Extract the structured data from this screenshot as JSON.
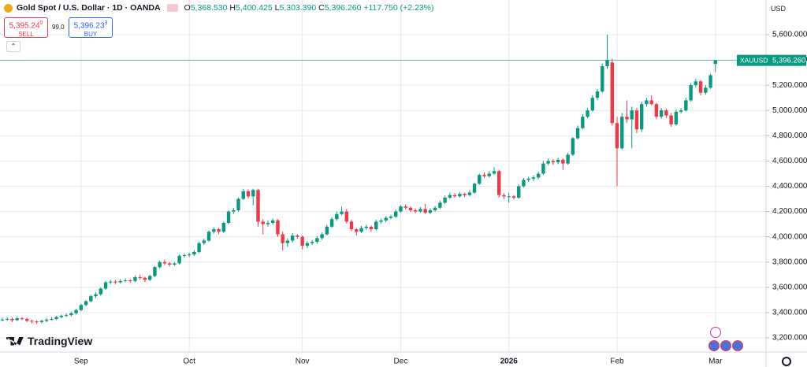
{
  "header": {
    "title": "Gold Spot / U.S. Dollar · 1D · OANDA",
    "o_key": "O",
    "o": "5,368.530",
    "h_key": "H",
    "h": "5,400.425",
    "l_key": "L",
    "l": "5,303.390",
    "c_key": "C",
    "c": "5,396.260",
    "change": "+117.750 (+2.23%)",
    "sell_price": "5,395.24",
    "sell_sup": "0",
    "sell": "SELL",
    "spread": "99.0",
    "buy_price": "5,396.23",
    "buy_sup": "3",
    "buy": "BUY",
    "currency": "USD",
    "brand": "TradingView"
  },
  "chart_data": {
    "type": "candlestick",
    "up_color": "#089981",
    "down_color": "#f23645",
    "grid": true,
    "categories": [
      null,
      null,
      null,
      null,
      null,
      null,
      null,
      null,
      null,
      null,
      null,
      null,
      null,
      null,
      null,
      null,
      "Sep",
      null,
      null,
      null,
      null,
      null,
      null,
      null,
      null,
      null,
      null,
      null,
      null,
      null,
      null,
      null,
      null,
      null,
      null,
      null,
      null,
      null,
      "Oct",
      null,
      null,
      null,
      null,
      null,
      null,
      null,
      null,
      null,
      null,
      null,
      null,
      null,
      null,
      null,
      null,
      null,
      null,
      null,
      null,
      null,
      null,
      "Nov",
      null,
      null,
      null,
      null,
      null,
      null,
      null,
      null,
      null,
      null,
      null,
      null,
      null,
      null,
      null,
      null,
      null,
      null,
      null,
      "Dec",
      null,
      null,
      null,
      null,
      null,
      null,
      null,
      null,
      null,
      null,
      null,
      null,
      null,
      null,
      null,
      null,
      null,
      null,
      null,
      null,
      null,
      "2026",
      null,
      null,
      null,
      null,
      null,
      null,
      null,
      null,
      null,
      null,
      null,
      null,
      null,
      null,
      null,
      null,
      null,
      null,
      null,
      null,
      null,
      "Feb",
      null,
      null,
      null,
      null,
      null,
      null,
      null,
      null,
      null,
      null,
      null,
      null,
      null,
      null,
      null,
      null,
      null,
      null,
      null,
      "Mar"
    ],
    "ohlc": [
      [
        3340,
        3360,
        3330,
        3345
      ],
      [
        3345,
        3365,
        3335,
        3350
      ],
      [
        3350,
        3360,
        3325,
        3340
      ],
      [
        3340,
        3370,
        3335,
        3355
      ],
      [
        3355,
        3365,
        3340,
        3350
      ],
      [
        3350,
        3360,
        3325,
        3335
      ],
      [
        3335,
        3345,
        3315,
        3330
      ],
      [
        3330,
        3340,
        3310,
        3325
      ],
      [
        3325,
        3345,
        3315,
        3335
      ],
      [
        3335,
        3355,
        3325,
        3345
      ],
      [
        3345,
        3365,
        3335,
        3350
      ],
      [
        3350,
        3375,
        3340,
        3365
      ],
      [
        3365,
        3385,
        3355,
        3375
      ],
      [
        3375,
        3395,
        3365,
        3380
      ],
      [
        3380,
        3405,
        3370,
        3395
      ],
      [
        3395,
        3430,
        3385,
        3420
      ],
      [
        3420,
        3470,
        3410,
        3460
      ],
      [
        3460,
        3500,
        3450,
        3490
      ],
      [
        3490,
        3540,
        3480,
        3530
      ],
      [
        3530,
        3560,
        3515,
        3545
      ],
      [
        3545,
        3600,
        3535,
        3590
      ],
      [
        3590,
        3650,
        3580,
        3640
      ],
      [
        3640,
        3660,
        3625,
        3645
      ],
      [
        3645,
        3660,
        3625,
        3640
      ],
      [
        3640,
        3665,
        3630,
        3650
      ],
      [
        3650,
        3670,
        3640,
        3655
      ],
      [
        3655,
        3665,
        3635,
        3650
      ],
      [
        3650,
        3695,
        3640,
        3680
      ],
      [
        3680,
        3700,
        3660,
        3675
      ],
      [
        3675,
        3685,
        3640,
        3660
      ],
      [
        3660,
        3700,
        3650,
        3690
      ],
      [
        3690,
        3770,
        3680,
        3760
      ],
      [
        3760,
        3810,
        3750,
        3800
      ],
      [
        3800,
        3820,
        3775,
        3790
      ],
      [
        3790,
        3800,
        3765,
        3780
      ],
      [
        3780,
        3800,
        3770,
        3790
      ],
      [
        3790,
        3860,
        3780,
        3850
      ],
      [
        3850,
        3870,
        3835,
        3855
      ],
      [
        3855,
        3875,
        3840,
        3860
      ],
      [
        3860,
        3895,
        3850,
        3880
      ],
      [
        3880,
        3960,
        3870,
        3950
      ],
      [
        3950,
        3985,
        3935,
        3970
      ],
      [
        3970,
        4050,
        3960,
        4040
      ],
      [
        4040,
        4075,
        4025,
        4060
      ],
      [
        4060,
        4070,
        4020,
        4040
      ],
      [
        4040,
        4120,
        4030,
        4110
      ],
      [
        4110,
        4210,
        4100,
        4200
      ],
      [
        4200,
        4230,
        4180,
        4210
      ],
      [
        4210,
        4310,
        4200,
        4300
      ],
      [
        4300,
        4380,
        4290,
        4360
      ],
      [
        4360,
        4375,
        4300,
        4320
      ],
      [
        4320,
        4380,
        4250,
        4370
      ],
      [
        4370,
        4380,
        4080,
        4120
      ],
      [
        4120,
        4140,
        4020,
        4100
      ],
      [
        4100,
        4130,
        4080,
        4110
      ],
      [
        4110,
        4145,
        4095,
        4130
      ],
      [
        4130,
        4140,
        4000,
        4020
      ],
      [
        4020,
        4040,
        3890,
        3950
      ],
      [
        3950,
        3990,
        3920,
        3970
      ],
      [
        3970,
        4030,
        3955,
        4010
      ],
      [
        4010,
        4020,
        3985,
        4000
      ],
      [
        4000,
        4010,
        3900,
        3930
      ],
      [
        3930,
        3965,
        3910,
        3950
      ],
      [
        3950,
        3975,
        3935,
        3960
      ],
      [
        3960,
        4005,
        3945,
        3990
      ],
      [
        3990,
        4035,
        3975,
        4020
      ],
      [
        4020,
        4095,
        4010,
        4080
      ],
      [
        4080,
        4155,
        4070,
        4140
      ],
      [
        4140,
        4200,
        4125,
        4180
      ],
      [
        4180,
        4240,
        4170,
        4200
      ],
      [
        4200,
        4220,
        4105,
        4120
      ],
      [
        4120,
        4135,
        4045,
        4060
      ],
      [
        4060,
        4070,
        4010,
        4040
      ],
      [
        4040,
        4085,
        4030,
        4070
      ],
      [
        4070,
        4095,
        4055,
        4080
      ],
      [
        4080,
        4090,
        4040,
        4060
      ],
      [
        4060,
        4135,
        4050,
        4120
      ],
      [
        4120,
        4145,
        4105,
        4130
      ],
      [
        4130,
        4165,
        4115,
        4150
      ],
      [
        4150,
        4175,
        4140,
        4160
      ],
      [
        4160,
        4215,
        4150,
        4200
      ],
      [
        4200,
        4250,
        4190,
        4240
      ],
      [
        4240,
        4255,
        4215,
        4230
      ],
      [
        4230,
        4240,
        4195,
        4210
      ],
      [
        4210,
        4225,
        4185,
        4200
      ],
      [
        4200,
        4235,
        4190,
        4220
      ],
      [
        4220,
        4260,
        4180,
        4190
      ],
      [
        4190,
        4225,
        4180,
        4210
      ],
      [
        4210,
        4245,
        4200,
        4230
      ],
      [
        4230,
        4285,
        4220,
        4270
      ],
      [
        4270,
        4325,
        4260,
        4310
      ],
      [
        4310,
        4350,
        4300,
        4330
      ],
      [
        4330,
        4345,
        4310,
        4320
      ],
      [
        4320,
        4355,
        4310,
        4340
      ],
      [
        4340,
        4350,
        4315,
        4330
      ],
      [
        4330,
        4365,
        4320,
        4350
      ],
      [
        4350,
        4430,
        4340,
        4420
      ],
      [
        4420,
        4500,
        4410,
        4490
      ],
      [
        4490,
        4510,
        4465,
        4480
      ],
      [
        4480,
        4520,
        4470,
        4500
      ],
      [
        4500,
        4550,
        4490,
        4520
      ],
      [
        4520,
        4530,
        4310,
        4330
      ],
      [
        4330,
        4345,
        4300,
        4320
      ],
      [
        4320,
        4350,
        4270,
        4320
      ],
      [
        4320,
        4330,
        4295,
        4310
      ],
      [
        4310,
        4415,
        4300,
        4400
      ],
      [
        4400,
        4465,
        4390,
        4450
      ],
      [
        4450,
        4475,
        4435,
        4460
      ],
      [
        4460,
        4485,
        4440,
        4470
      ],
      [
        4470,
        4515,
        4455,
        4500
      ],
      [
        4500,
        4600,
        4490,
        4580
      ],
      [
        4580,
        4620,
        4565,
        4600
      ],
      [
        4600,
        4615,
        4570,
        4590
      ],
      [
        4590,
        4625,
        4575,
        4610
      ],
      [
        4610,
        4620,
        4530,
        4580
      ],
      [
        4580,
        4665,
        4570,
        4650
      ],
      [
        4650,
        4790,
        4640,
        4780
      ],
      [
        4780,
        4880,
        4770,
        4860
      ],
      [
        4860,
        4970,
        4850,
        4950
      ],
      [
        4950,
        5020,
        4940,
        5000
      ],
      [
        5000,
        5120,
        4990,
        5100
      ],
      [
        5100,
        5170,
        5080,
        5150
      ],
      [
        5150,
        5370,
        5140,
        5350
      ],
      [
        5350,
        5600,
        5330,
        5400
      ],
      [
        5380,
        5410,
        4880,
        4900
      ],
      [
        4900,
        4950,
        4400,
        4700
      ],
      [
        4700,
        4980,
        4690,
        4950
      ],
      [
        4950,
        5080,
        4900,
        4930
      ],
      [
        4930,
        5030,
        4700,
        5000
      ],
      [
        5000,
        5020,
        4820,
        4850
      ],
      [
        4850,
        5070,
        4830,
        5050
      ],
      [
        5050,
        5100,
        5030,
        5080
      ],
      [
        5080,
        5120,
        5040,
        5050
      ],
      [
        5050,
        5060,
        4930,
        4950
      ],
      [
        4950,
        5020,
        4935,
        5000
      ],
      [
        5000,
        5015,
        4940,
        4960
      ],
      [
        4960,
        4980,
        4870,
        4890
      ],
      [
        4890,
        5005,
        4880,
        4990
      ],
      [
        4990,
        5020,
        4975,
        5000
      ],
      [
        5000,
        5100,
        4990,
        5080
      ],
      [
        5080,
        5215,
        5070,
        5200
      ],
      [
        5200,
        5250,
        5180,
        5230
      ],
      [
        5230,
        5240,
        5120,
        5140
      ],
      [
        5140,
        5200,
        5125,
        5180
      ],
      [
        5180,
        5290,
        5170,
        5278.51
      ],
      [
        5368.53,
        5400.425,
        5303.39,
        5396.26
      ]
    ],
    "ylim": [
      3088,
      5874
    ],
    "yticks": [
      {
        "value": 3200,
        "label": "3,200.000"
      },
      {
        "value": 3400,
        "label": "3,400.000"
      },
      {
        "value": 3600,
        "label": "3,600.000"
      },
      {
        "value": 3800,
        "label": "3,800.000"
      },
      {
        "value": 4000,
        "label": "4,000.000"
      },
      {
        "value": 4200,
        "label": "4,200.000"
      },
      {
        "value": 4400,
        "label": "4,400.000"
      },
      {
        "value": 4600,
        "label": "4,600.000"
      },
      {
        "value": 4800,
        "label": "4,800.000"
      },
      {
        "value": 5000,
        "label": "5,000.000"
      },
      {
        "value": 5200,
        "label": "5,200.000"
      },
      {
        "value": 5400,
        "label": "5,400.000"
      },
      {
        "value": 5600,
        "label": "5,600.000"
      }
    ],
    "last_price": {
      "symbol": "XAUUSD",
      "value": 5396.26,
      "label": "5,396.260"
    }
  }
}
